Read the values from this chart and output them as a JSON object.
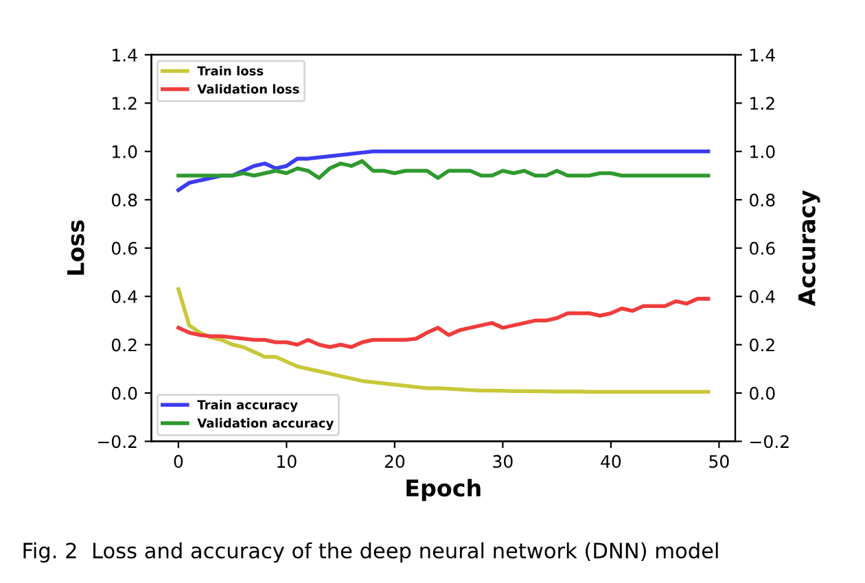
{
  "chart_data": {
    "type": "line",
    "xlabel": "Epoch",
    "ylabel": "Loss",
    "y2label": "Accuracy",
    "annotations": [
      "Fig. 2  Loss and accuracy of the deep neural network (DNN) model"
    ],
    "x": [
      0,
      1,
      2,
      3,
      4,
      5,
      6,
      7,
      8,
      9,
      10,
      11,
      12,
      13,
      14,
      15,
      16,
      17,
      18,
      19,
      20,
      21,
      22,
      23,
      24,
      25,
      26,
      27,
      28,
      29,
      30,
      31,
      32,
      33,
      34,
      35,
      36,
      37,
      38,
      39,
      40,
      41,
      42,
      43,
      44,
      45,
      46,
      47,
      48,
      49
    ],
    "xlim": [
      -2.5,
      51.5
    ],
    "xticks": [
      0,
      10,
      20,
      30,
      40,
      50
    ],
    "ylim": [
      -0.2,
      1.4
    ],
    "yticks": [
      {
        "value": -0.2,
        "label": "−0.2"
      },
      {
        "value": 0.0,
        "label": "0.0"
      },
      {
        "value": 0.2,
        "label": "0.2"
      },
      {
        "value": 0.4,
        "label": "0.4"
      },
      {
        "value": 0.6,
        "label": "0.6"
      },
      {
        "value": 0.8,
        "label": "0.8"
      },
      {
        "value": 1.0,
        "label": "1.0"
      },
      {
        "value": 1.2,
        "label": "1.2"
      },
      {
        "value": 1.4,
        "label": "1.4"
      }
    ],
    "y2lim": [
      -0.2,
      1.4
    ],
    "y2ticks": [
      {
        "value": -0.2,
        "label": "−0.2"
      },
      {
        "value": 0.0,
        "label": "0.0"
      },
      {
        "value": 0.2,
        "label": "0.2"
      },
      {
        "value": 0.4,
        "label": "0.4"
      },
      {
        "value": 0.6,
        "label": "0.6"
      },
      {
        "value": 0.8,
        "label": "0.8"
      },
      {
        "value": 1.0,
        "label": "1.0"
      },
      {
        "value": 1.2,
        "label": "1.2"
      },
      {
        "value": 1.4,
        "label": "1.4"
      }
    ],
    "grid": false,
    "legend": "left",
    "series": [
      {
        "name": "Train loss",
        "color": "#c8c83a",
        "values": [
          0.43,
          0.28,
          0.25,
          0.23,
          0.22,
          0.2,
          0.19,
          0.17,
          0.15,
          0.15,
          0.13,
          0.11,
          0.1,
          0.09,
          0.08,
          0.07,
          0.06,
          0.05,
          0.045,
          0.04,
          0.035,
          0.03,
          0.025,
          0.02,
          0.02,
          0.018,
          0.015,
          0.012,
          0.01,
          0.01,
          0.009,
          0.008,
          0.008,
          0.007,
          0.007,
          0.006,
          0.006,
          0.006,
          0.005,
          0.005,
          0.005,
          0.005,
          0.005,
          0.005,
          0.005,
          0.005,
          0.005,
          0.005,
          0.005,
          0.005
        ]
      },
      {
        "name": "Validation loss",
        "color": "#f03c3c",
        "values": [
          0.27,
          0.25,
          0.24,
          0.235,
          0.235,
          0.23,
          0.225,
          0.22,
          0.22,
          0.21,
          0.21,
          0.2,
          0.22,
          0.2,
          0.19,
          0.2,
          0.19,
          0.21,
          0.22,
          0.22,
          0.22,
          0.22,
          0.225,
          0.25,
          0.27,
          0.24,
          0.26,
          0.27,
          0.28,
          0.29,
          0.27,
          0.28,
          0.29,
          0.3,
          0.3,
          0.31,
          0.33,
          0.33,
          0.33,
          0.32,
          0.33,
          0.35,
          0.34,
          0.36,
          0.36,
          0.36,
          0.38,
          0.37,
          0.39,
          0.39
        ]
      },
      {
        "name": "Train accuracy",
        "color": "#3c3cf0",
        "axis": "y2",
        "values": [
          0.84,
          0.87,
          0.88,
          0.89,
          0.9,
          0.9,
          0.92,
          0.94,
          0.95,
          0.93,
          0.94,
          0.97,
          0.97,
          0.975,
          0.98,
          0.985,
          0.99,
          0.995,
          1.0,
          1.0,
          1.0,
          1.0,
          1.0,
          1.0,
          1.0,
          1.0,
          1.0,
          1.0,
          1.0,
          1.0,
          1.0,
          1.0,
          1.0,
          1.0,
          1.0,
          1.0,
          1.0,
          1.0,
          1.0,
          1.0,
          1.0,
          1.0,
          1.0,
          1.0,
          1.0,
          1.0,
          1.0,
          1.0,
          1.0,
          1.0
        ]
      },
      {
        "name": "Validation accuracy",
        "color": "#2e9a2e",
        "axis": "y2",
        "values": [
          0.9,
          0.9,
          0.9,
          0.9,
          0.9,
          0.9,
          0.91,
          0.9,
          0.91,
          0.92,
          0.91,
          0.93,
          0.92,
          0.89,
          0.93,
          0.95,
          0.94,
          0.96,
          0.92,
          0.92,
          0.91,
          0.92,
          0.92,
          0.92,
          0.89,
          0.92,
          0.92,
          0.92,
          0.9,
          0.9,
          0.92,
          0.91,
          0.92,
          0.9,
          0.9,
          0.92,
          0.9,
          0.9,
          0.9,
          0.91,
          0.91,
          0.9,
          0.9,
          0.9,
          0.9,
          0.9,
          0.9,
          0.9,
          0.9,
          0.9
        ]
      }
    ]
  }
}
